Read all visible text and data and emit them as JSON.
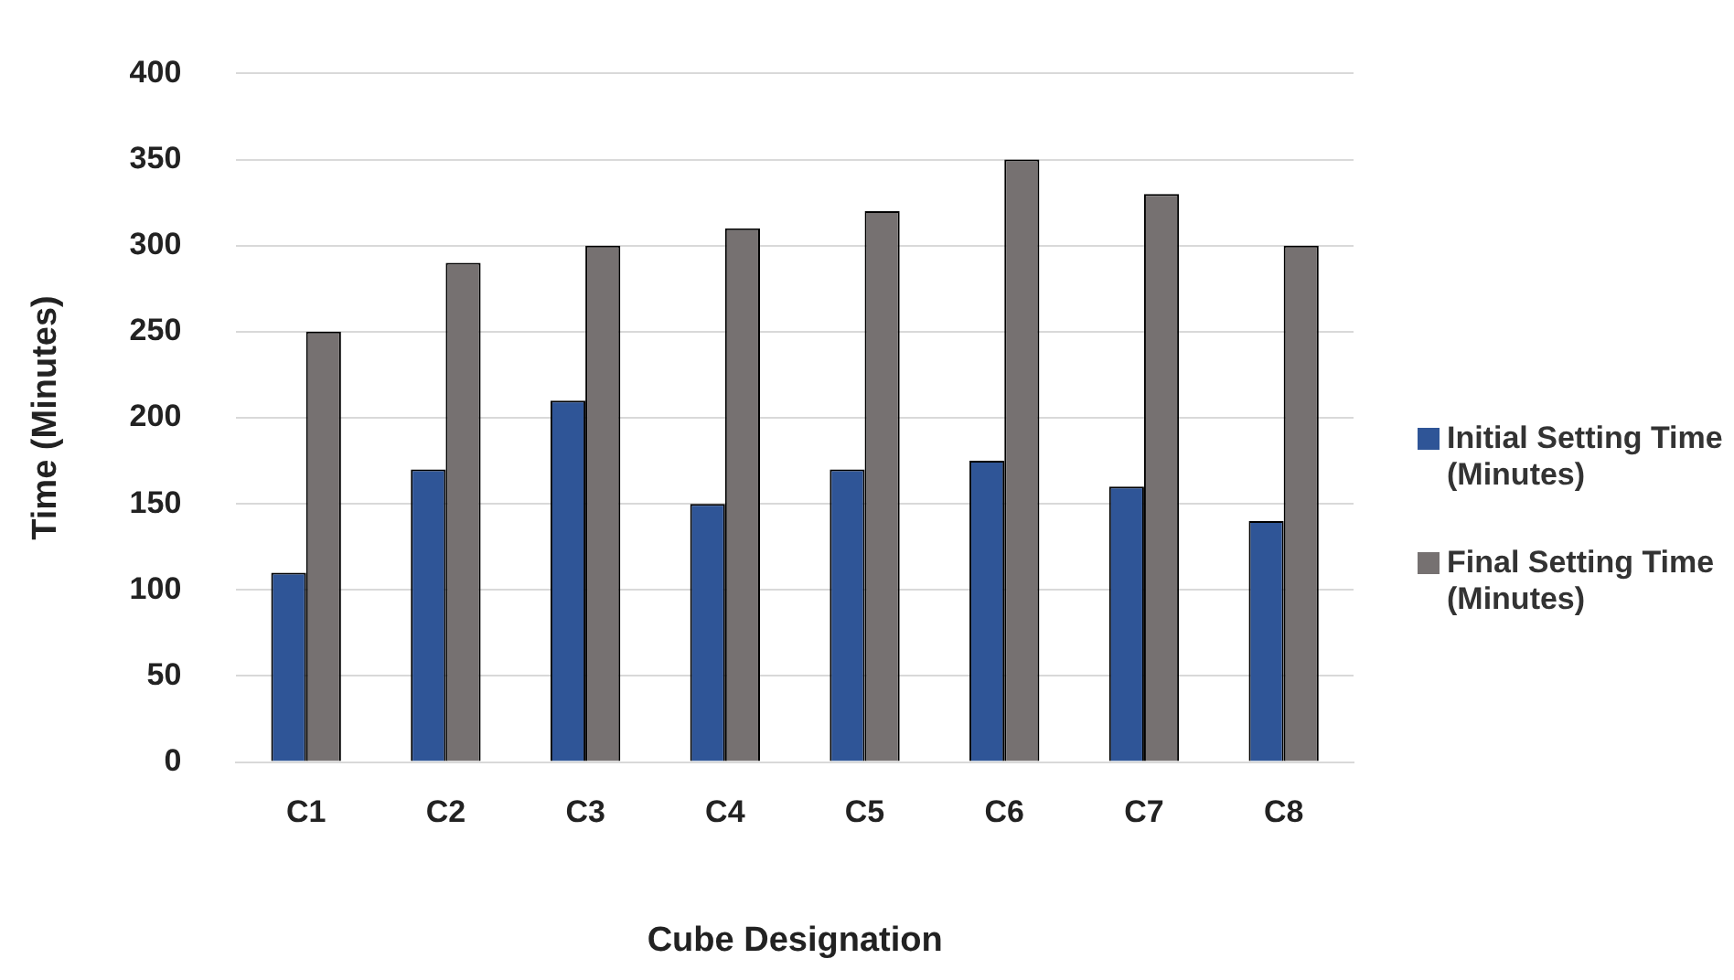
{
  "chart_data": {
    "type": "bar",
    "xlabel": "Cube Designation",
    "ylabel": "Time (Minutes)",
    "categories": [
      "C1",
      "C2",
      "C3",
      "C4",
      "C5",
      "C6",
      "C7",
      "C8"
    ],
    "series": [
      {
        "name": "Initial Setting Time (Minutes)",
        "color": "#2f5597",
        "values": [
          110,
          170,
          210,
          150,
          170,
          175,
          160,
          140
        ]
      },
      {
        "name": "Final Setting Time (Minutes)",
        "color": "#767171",
        "values": [
          250,
          290,
          300,
          310,
          320,
          350,
          330,
          300
        ]
      }
    ],
    "ylim": [
      0,
      400
    ],
    "yticks": [
      0,
      50,
      100,
      150,
      200,
      250,
      300,
      350,
      400
    ],
    "grid": "y",
    "legend": "right"
  }
}
